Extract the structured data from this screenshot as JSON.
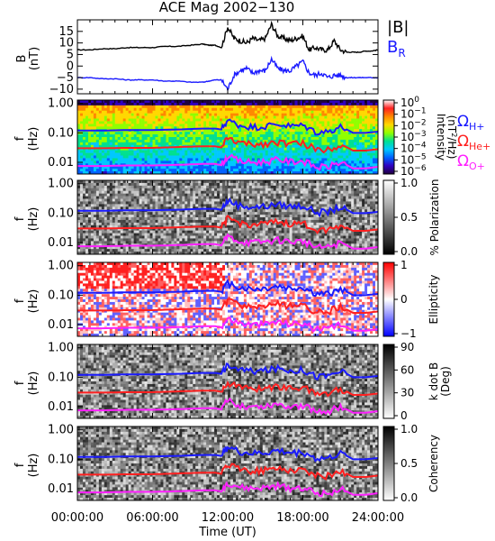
{
  "title": "ACE Mag 2002−130",
  "colors": {
    "B_total": "#000000",
    "B_R": "#1a1aff",
    "omega_H": "#1a1aff",
    "omega_He": "#ff2020",
    "omega_O": "#ff20ff",
    "frame": "#000000"
  },
  "x_axis": {
    "label": "Time (UT)",
    "ticks": [
      "00:00:00",
      "06:00:00",
      "12:00:00",
      "18:00:00",
      "24:00:00"
    ],
    "tick_hours": [
      0,
      6,
      12,
      18,
      24
    ],
    "range_hours": [
      0,
      24
    ]
  },
  "panels": {
    "field": {
      "ylabel_top": "B",
      "ylabel_unit": "(nT)",
      "yticks": [
        "15",
        "10",
        "5",
        "0",
        "−5",
        "−10"
      ],
      "ytick_values": [
        15,
        10,
        5,
        0,
        -5,
        -10
      ],
      "ylim": [
        -12,
        20
      ],
      "legend": {
        "total": "|B|",
        "radial": "B",
        "radial_sub": "R"
      }
    },
    "intensity": {
      "ylabel": "f",
      "yunit": "(Hz)",
      "cbar_label": "Intensity",
      "cbar_unit_pre": "(nT",
      "cbar_unit_sup": "2",
      "cbar_unit_post": "/Hz)",
      "cbar_ticks": [
        {
          "base": "10",
          "exp": "0"
        },
        {
          "base": "10",
          "exp": "−1"
        },
        {
          "base": "10",
          "exp": "−2"
        },
        {
          "base": "10",
          "exp": "−3"
        },
        {
          "base": "10",
          "exp": "−4"
        },
        {
          "base": "10",
          "exp": "−5"
        },
        {
          "base": "10",
          "exp": "−6"
        }
      ],
      "cbar_colors": [
        "#ffffff",
        "#ff2020",
        "#ff8800",
        "#ffd800",
        "#90ff00",
        "#00e090",
        "#00c8ff",
        "#0060ff",
        "#3000c0",
        "#200040"
      ],
      "legend": [
        {
          "sym": "Ω",
          "sub": "H+",
          "color_key": "omega_H"
        },
        {
          "sym": "Ω",
          "sub": "He+",
          "color_key": "omega_He"
        },
        {
          "sym": "Ω",
          "sub": "O+",
          "color_key": "omega_O"
        }
      ]
    },
    "polarization": {
      "ylabel": "f",
      "yunit": "(Hz)",
      "cbar_label": "% Polarization",
      "cbar_ticks": [
        "1.0",
        "0.5",
        "0.0"
      ],
      "cbar_colors": [
        "#ffffff",
        "#000000"
      ]
    },
    "ellipticity": {
      "ylabel": "f",
      "yunit": "(Hz)",
      "cbar_label": "Ellipticity",
      "cbar_ticks": [
        "1",
        "0",
        "−1"
      ],
      "cbar_colors": [
        "#ff0000",
        "#ffffff",
        "#0000ff"
      ]
    },
    "kdotb": {
      "ylabel": "f",
      "yunit": "(Hz)",
      "cbar_label": "k dot B",
      "cbar_unit": "(Deg)",
      "cbar_ticks": [
        "90",
        "60",
        "30",
        "0"
      ],
      "cbar_colors": [
        "#000000",
        "#ffffff"
      ]
    },
    "coherency": {
      "ylabel": "f",
      "yunit": "(Hz)",
      "cbar_label": "Coherency",
      "cbar_ticks": [
        "1.0",
        "0.5",
        "0.0"
      ],
      "cbar_colors": [
        "#000000",
        "#ffffff"
      ]
    }
  },
  "freq_axis": {
    "ticks": [
      "1.00",
      "0.10",
      "0.01"
    ],
    "tick_values": [
      1.0,
      0.1,
      0.01
    ],
    "ylim": [
      0.004,
      1.3
    ],
    "scale": "log"
  },
  "chart_data": [
    {
      "type": "line",
      "title": "ACE Mag 2002−130",
      "xlabel": "Time (UT)",
      "ylabel": "B (nT)",
      "x_units": "hours UT",
      "ylim": [
        -12,
        20
      ],
      "series": [
        {
          "name": "|B|",
          "color": "#000000",
          "x": [
            0,
            1,
            2,
            3,
            4,
            5,
            6,
            7,
            8,
            9,
            10,
            10.5,
            11,
            11.5,
            12,
            12.5,
            13,
            13.5,
            14,
            14.5,
            15,
            15.5,
            16,
            16.5,
            17,
            17.5,
            18,
            18.5,
            19,
            19.5,
            20,
            20.5,
            21,
            21.5,
            22,
            22.5,
            23,
            23.5,
            24
          ],
          "values": [
            7,
            7,
            7.5,
            7.5,
            8,
            8,
            8,
            8.5,
            8.5,
            9,
            9.5,
            9,
            9,
            8,
            17,
            12,
            11,
            10,
            12,
            11,
            12,
            18,
            13,
            12,
            11,
            12,
            13,
            7,
            8,
            7,
            7,
            11,
            7,
            6,
            6,
            6,
            6.5,
            6.5,
            7
          ]
        },
        {
          "name": "B",
          "color": "#1a1aff",
          "x": [
            0,
            1,
            2,
            3,
            4,
            5,
            6,
            7,
            8,
            9,
            10,
            10.5,
            11,
            11.5,
            12,
            12.5,
            13,
            13.5,
            14,
            14.5,
            15,
            15.5,
            16,
            16.5,
            17,
            17.5,
            18,
            18.5,
            19,
            19.5,
            20,
            20.5,
            21,
            21.5,
            22,
            22.5,
            23,
            23.5,
            24
          ],
          "values": [
            -5,
            -5,
            -5.5,
            -5.5,
            -6,
            -6,
            -6,
            -6.5,
            -6.5,
            -7,
            -7,
            -6.5,
            -6,
            -6,
            -10,
            -4,
            -2,
            -1,
            -3,
            -2,
            -2,
            3,
            -1,
            -2,
            -2,
            0,
            2,
            -3,
            -4,
            -3,
            -5,
            -4,
            -4,
            -5,
            -5,
            -5,
            -5,
            -5,
            -5
          ]
        }
      ]
    },
    {
      "type": "line",
      "xlabel": "Time (UT)",
      "ylabel": "f (Hz)",
      "yscale": "log",
      "x_units": "hours UT",
      "series": [
        {
          "name": "ΩH+",
          "color": "#1a1aff",
          "x": [
            0,
            2,
            4,
            6,
            8,
            10,
            11,
            11.5,
            12,
            13,
            14,
            15,
            16,
            17,
            18,
            19,
            20,
            21,
            22,
            23,
            24
          ],
          "values": [
            0.12,
            0.12,
            0.125,
            0.125,
            0.13,
            0.14,
            0.14,
            0.13,
            0.26,
            0.18,
            0.16,
            0.17,
            0.2,
            0.17,
            0.18,
            0.11,
            0.11,
            0.16,
            0.1,
            0.1,
            0.11
          ]
        },
        {
          "name": "ΩHe+",
          "color": "#ff2020",
          "x": [
            0,
            2,
            4,
            6,
            8,
            10,
            11,
            11.5,
            12,
            13,
            14,
            15,
            16,
            17,
            18,
            19,
            20,
            21,
            22,
            23,
            24
          ],
          "values": [
            0.03,
            0.03,
            0.031,
            0.031,
            0.033,
            0.035,
            0.035,
            0.032,
            0.065,
            0.045,
            0.04,
            0.043,
            0.05,
            0.043,
            0.045,
            0.028,
            0.028,
            0.04,
            0.025,
            0.025,
            0.028
          ]
        },
        {
          "name": "ΩO+",
          "color": "#ff20ff",
          "x": [
            0,
            2,
            4,
            6,
            8,
            10,
            11,
            11.5,
            12,
            13,
            14,
            15,
            16,
            17,
            18,
            19,
            20,
            21,
            22,
            23,
            24
          ],
          "values": [
            0.0075,
            0.0075,
            0.0078,
            0.0078,
            0.0082,
            0.0088,
            0.0088,
            0.008,
            0.016,
            0.011,
            0.01,
            0.0107,
            0.0125,
            0.0107,
            0.0112,
            0.007,
            0.007,
            0.01,
            0.0062,
            0.0062,
            0.007
          ]
        }
      ]
    }
  ]
}
